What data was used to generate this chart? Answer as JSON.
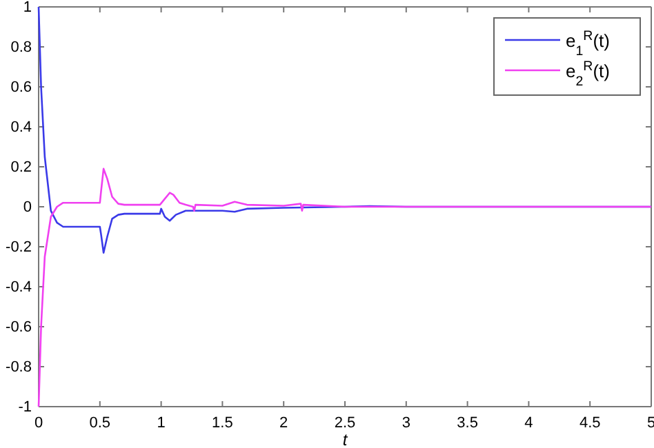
{
  "chart_data": {
    "type": "line",
    "xlabel": "t",
    "xlim": [
      0,
      5
    ],
    "ylim": [
      -1,
      1
    ],
    "xticks": [
      0,
      0.5,
      1,
      1.5,
      2,
      2.5,
      3,
      3.5,
      4,
      4.5,
      5
    ],
    "yticks": [
      -1,
      -0.8,
      -0.6,
      -0.4,
      -0.2,
      0,
      0.2,
      0.4,
      0.6,
      0.8,
      1
    ],
    "grid": false,
    "legend": "top right",
    "line_style": "solid",
    "marker": "none",
    "series": [
      {
        "name": "e$_{1}$$^{R}$(t)",
        "color": "#3a3ae8",
        "x": [
          0,
          0.02,
          0.05,
          0.1,
          0.15,
          0.2,
          0.5,
          0.51,
          0.53,
          0.56,
          0.6,
          0.65,
          0.7,
          0.99,
          1.0,
          1.03,
          1.07,
          1.12,
          1.2,
          1.5,
          1.6,
          1.7,
          2.0,
          2.5,
          2.7,
          3,
          5
        ],
        "values": [
          1,
          0.6,
          0.25,
          -0.02,
          -0.08,
          -0.1,
          -0.1,
          -0.14,
          -0.23,
          -0.15,
          -0.06,
          -0.04,
          -0.035,
          -0.035,
          -0.01,
          -0.05,
          -0.07,
          -0.04,
          -0.02,
          -0.02,
          -0.025,
          -0.01,
          -0.005,
          0,
          0.003,
          0,
          0
        ]
      },
      {
        "name": "e$_{2}$$^{R}$(t)",
        "color": "#f040f0",
        "x": [
          0,
          0.02,
          0.05,
          0.1,
          0.15,
          0.2,
          0.5,
          0.51,
          0.53,
          0.56,
          0.6,
          0.65,
          0.7,
          0.99,
          1.03,
          1.07,
          1.1,
          1.15,
          1.2,
          1.26,
          1.27,
          1.28,
          1.5,
          1.6,
          1.7,
          2.0,
          2.14,
          2.15,
          2.16,
          2.5,
          5
        ],
        "values": [
          -1,
          -0.6,
          -0.25,
          -0.05,
          0,
          0.02,
          0.02,
          0.08,
          0.19,
          0.14,
          0.05,
          0.015,
          0.01,
          0.01,
          0.04,
          0.07,
          0.06,
          0.02,
          0.01,
          0,
          -0.02,
          0.01,
          0.005,
          0.025,
          0.01,
          0.005,
          0.015,
          -0.02,
          0.01,
          0,
          0
        ]
      }
    ]
  }
}
